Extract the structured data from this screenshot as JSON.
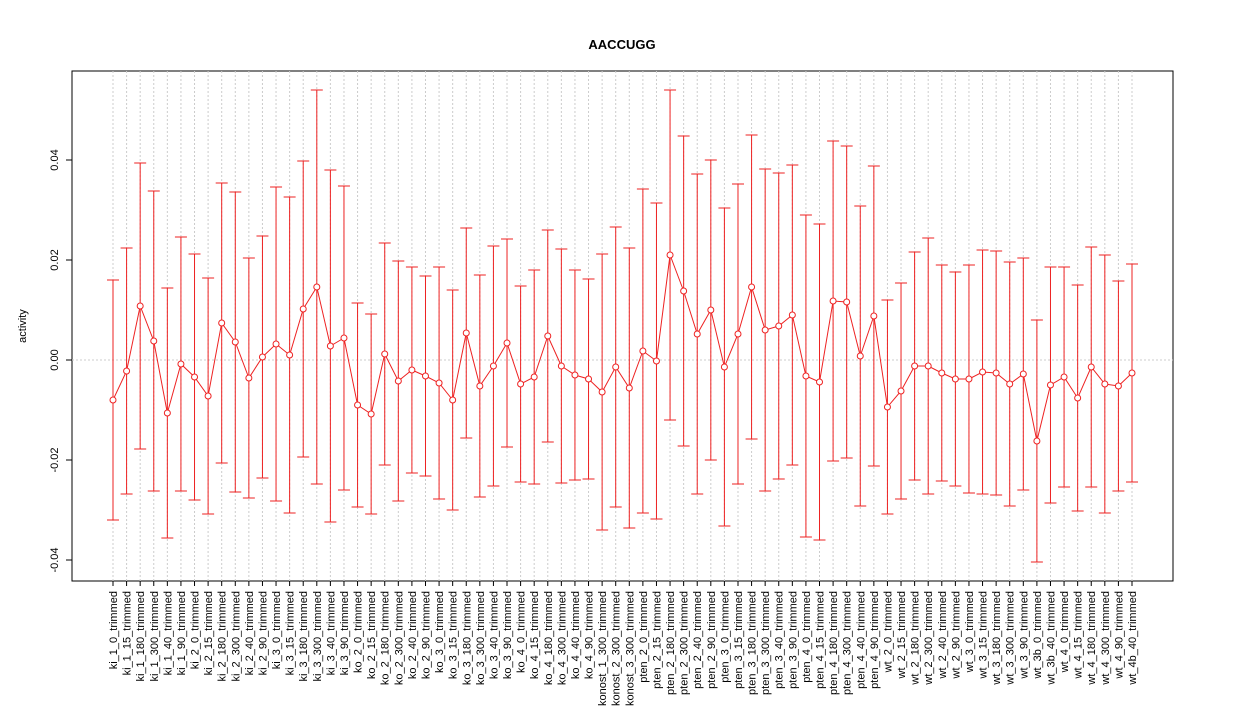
{
  "chart_data": {
    "type": "errorline",
    "title": "AACCUGG",
    "y_label": "activity",
    "categories": [
      "ki_1_0_trimmed",
      "ki_1_15_trimmed",
      "ki_1_180_trimmed",
      "ki_1_300_trimmed",
      "ki_1_40_trimmed",
      "ki_1_90_trimmed",
      "ki_2_0_trimmed",
      "ki_2_15_trimmed",
      "ki_2_180_trimmed",
      "ki_2_300_trimmed",
      "ki_2_40_trimmed",
      "ki_2_90_trimmed",
      "ki_3_0_trimmed",
      "ki_3_15_trimmed",
      "ki_3_180_trimmed",
      "ki_3_300_trimmed",
      "ki_3_40_trimmed",
      "ki_3_90_trimmed",
      "ko_2_0_trimmed",
      "ko_2_15_trimmed",
      "ko_2_180_trimmed",
      "ko_2_300_trimmed",
      "ko_2_40_trimmed",
      "ko_2_90_trimmed",
      "ko_3_0_trimmed",
      "ko_3_15_trimmed",
      "ko_3_180_trimmed",
      "ko_3_300_trimmed",
      "ko_3_40_trimmed",
      "ko_3_90_trimmed",
      "ko_4_0_trimmed",
      "ko_4_15_trimmed",
      "ko_4_180_trimmed",
      "ko_4_300_trimmed",
      "ko_4_40_trimmed",
      "ko_4_90_trimmed",
      "konost_1_300_trimmed",
      "konost_2_300_trimmed",
      "konost_3_300_trimmed",
      "pten_2_0_trimmed",
      "pten_2_15_trimmed",
      "pten_2_180_trimmed",
      "pten_2_300_trimmed",
      "pten_2_40_trimmed",
      "pten_2_90_trimmed",
      "pten_3_0_trimmed",
      "pten_3_15_trimmed",
      "pten_3_180_trimmed",
      "pten_3_300_trimmed",
      "pten_3_40_trimmed",
      "pten_3_90_trimmed",
      "pten_4_0_trimmed",
      "pten_4_15_trimmed",
      "pten_4_180_trimmed",
      "pten_4_300_trimmed",
      "pten_4_40_trimmed",
      "pten_4_90_trimmed",
      "wt_2_0_trimmed",
      "wt_2_15_trimmed",
      "wt_2_180_trimmed",
      "wt_2_300_trimmed",
      "wt_2_40_trimmed",
      "wt_2_90_trimmed",
      "wt_3_0_trimmed",
      "wt_3_15_trimmed",
      "wt_3_180_trimmed",
      "wt_3_300_trimmed",
      "wt_3_90_trimmed",
      "wt_3b_0_trimmed",
      "wt_3b_40_trimmed",
      "wt_4_0_trimmed",
      "wt_4_15_trimmed",
      "wt_4_180_trimmed",
      "wt_4_300_trimmed",
      "wt_4_90_trimmed",
      "wt_4b_40_trimmed"
    ],
    "values": [
      -0.008,
      -0.0022,
      0.0108,
      0.0038,
      -0.0106,
      -0.0008,
      -0.0034,
      -0.0072,
      0.0074,
      0.0036,
      -0.0036,
      0.0006,
      0.0032,
      0.001,
      0.0102,
      0.0146,
      0.0028,
      0.0044,
      -0.009,
      -0.0108,
      0.0012,
      -0.0042,
      -0.002,
      -0.0032,
      -0.0046,
      -0.008,
      0.0054,
      -0.0052,
      -0.0012,
      0.0034,
      -0.0048,
      -0.0034,
      0.0048,
      -0.0012,
      -0.003,
      -0.0038,
      -0.0064,
      -0.0014,
      -0.0056,
      0.0018,
      -0.0002,
      0.021,
      0.0138,
      0.0052,
      0.01,
      -0.0014,
      0.0052,
      0.0146,
      0.006,
      0.0068,
      0.009,
      -0.0032,
      -0.0044,
      0.0118,
      0.0116,
      0.0008,
      0.0088,
      -0.0094,
      -0.0062,
      -0.0012,
      -0.0012,
      -0.0026,
      -0.0038,
      -0.0038,
      -0.0024,
      -0.0026,
      -0.0048,
      -0.0028,
      -0.0162,
      -0.005,
      -0.0034,
      -0.0076,
      -0.0014,
      -0.0048,
      -0.0052,
      -0.0026
    ],
    "errors": [
      0.024,
      0.0246,
      0.0286,
      0.03,
      0.025,
      0.0254,
      0.0246,
      0.0236,
      0.028,
      0.03,
      0.024,
      0.0242,
      0.0314,
      0.0316,
      0.0296,
      0.0394,
      0.0352,
      0.0304,
      0.0204,
      0.02,
      0.0222,
      0.024,
      0.0206,
      0.02,
      0.0232,
      0.022,
      0.021,
      0.0222,
      0.024,
      0.0208,
      0.0196,
      0.0214,
      0.0212,
      0.0234,
      0.021,
      0.02,
      0.0276,
      0.028,
      0.028,
      0.0324,
      0.0316,
      0.033,
      0.031,
      0.032,
      0.03,
      0.0318,
      0.03,
      0.0304,
      0.0322,
      0.0306,
      0.03,
      0.0322,
      0.0316,
      0.032,
      0.0312,
      0.03,
      0.03,
      0.0214,
      0.0216,
      0.0228,
      0.0256,
      0.0216,
      0.0214,
      0.0228,
      0.0244,
      0.0244,
      0.0244,
      0.0232,
      0.0242,
      0.0236,
      0.022,
      0.0226,
      0.024,
      0.0258,
      0.021,
      0.0218
    ],
    "color": "#ee2222",
    "ylim": [
      -0.0442,
      0.0578
    ],
    "yticks": [
      -0.04,
      -0.02,
      {
        "value": 0,
        "label": "0.00"
      },
      0.02,
      0.04
    ],
    "grid": true
  }
}
